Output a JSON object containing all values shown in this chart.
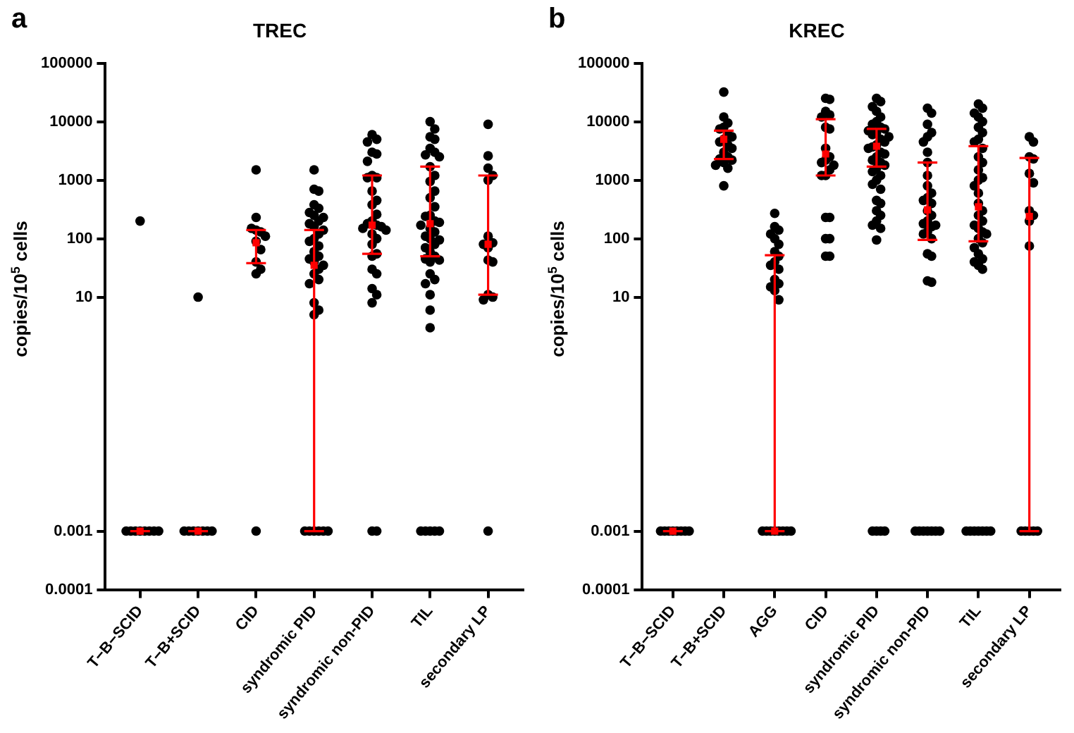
{
  "chart_data": [
    {
      "type": "scatter",
      "title": "TREC",
      "ylabel": "copies/10$^{5}$ cells",
      "annotations": [
        "a"
      ],
      "log": true,
      "grid": false,
      "legend": false,
      "marker": "circle",
      "categories": [
        "T−B−SCID",
        "T−B+SCID",
        "CID",
        "syndromic PID",
        "syndromic non-PID",
        "TIL",
        "secondary LP"
      ],
      "ylim": [
        0.0001,
        100000
      ],
      "yticks": [
        0.0001,
        0.001,
        10,
        100,
        1000,
        10000,
        100000
      ],
      "series": [
        {
          "type": "scatter",
          "color": "#000000",
          "x": [
            "T−B−SCID",
            "T−B−SCID",
            "T−B−SCID",
            "T−B−SCID",
            "T−B−SCID",
            "T−B−SCID",
            "T−B−SCID",
            "T−B−SCID",
            "T−B−SCID",
            "T−B+SCID",
            "T−B+SCID",
            "T−B+SCID",
            "T−B+SCID",
            "T−B+SCID",
            "T−B+SCID",
            "T−B+SCID",
            "T−B+SCID",
            "CID",
            "CID",
            "CID",
            "CID",
            "CID",
            "CID",
            "CID",
            "CID",
            "CID",
            "CID",
            "CID",
            "CID",
            "syndromic PID",
            "syndromic PID",
            "syndromic PID",
            "syndromic PID",
            "syndromic PID",
            "syndromic PID",
            "syndromic PID",
            "syndromic PID",
            "syndromic PID",
            "syndromic PID",
            "syndromic PID",
            "syndromic PID",
            "syndromic PID",
            "syndromic PID",
            "syndromic PID",
            "syndromic PID",
            "syndromic PID",
            "syndromic PID",
            "syndromic PID",
            "syndromic PID",
            "syndromic PID",
            "syndromic PID",
            "syndromic PID",
            "syndromic PID",
            "syndromic PID",
            "syndromic PID",
            "syndromic PID",
            "syndromic PID",
            "syndromic PID",
            "syndromic PID",
            "syndromic PID",
            "syndromic PID",
            "syndromic PID",
            "syndromic PID",
            "syndromic non-PID",
            "syndromic non-PID",
            "syndromic non-PID",
            "syndromic non-PID",
            "syndromic non-PID",
            "syndromic non-PID",
            "syndromic non-PID",
            "syndromic non-PID",
            "syndromic non-PID",
            "syndromic non-PID",
            "syndromic non-PID",
            "syndromic non-PID",
            "syndromic non-PID",
            "syndromic non-PID",
            "syndromic non-PID",
            "syndromic non-PID",
            "syndromic non-PID",
            "syndromic non-PID",
            "syndromic non-PID",
            "syndromic non-PID",
            "syndromic non-PID",
            "syndromic non-PID",
            "syndromic non-PID",
            "syndromic non-PID",
            "syndromic non-PID",
            "syndromic non-PID",
            "syndromic non-PID",
            "syndromic non-PID",
            "syndromic non-PID",
            "syndromic non-PID",
            "syndromic non-PID",
            "TIL",
            "TIL",
            "TIL",
            "TIL",
            "TIL",
            "TIL",
            "TIL",
            "TIL",
            "TIL",
            "TIL",
            "TIL",
            "TIL",
            "TIL",
            "TIL",
            "TIL",
            "TIL",
            "TIL",
            "TIL",
            "TIL",
            "TIL",
            "TIL",
            "TIL",
            "TIL",
            "TIL",
            "TIL",
            "TIL",
            "TIL",
            "TIL",
            "TIL",
            "TIL",
            "TIL",
            "TIL",
            "TIL",
            "TIL",
            "TIL",
            "TIL",
            "TIL",
            "TIL",
            "TIL",
            "TIL",
            "TIL",
            "TIL",
            "secondary LP",
            "secondary LP",
            "secondary LP",
            "secondary LP",
            "secondary LP",
            "secondary LP",
            "secondary LP",
            "secondary LP",
            "secondary LP",
            "secondary LP",
            "secondary LP",
            "secondary LP",
            "secondary LP",
            "secondary LP",
            "secondary LP"
          ],
          "values": [
            200,
            0.001,
            0.001,
            0.001,
            0.001,
            0.001,
            0.001,
            0.001,
            0.001,
            10,
            0.001,
            0.001,
            0.001,
            0.001,
            0.001,
            0.001,
            0.001,
            1500,
            230,
            140,
            130,
            150,
            110,
            90,
            65,
            40,
            30,
            25,
            0.001,
            1500,
            700,
            650,
            380,
            330,
            280,
            250,
            230,
            200,
            180,
            160,
            140,
            120,
            100,
            90,
            75,
            60,
            50,
            45,
            40,
            35,
            30,
            25,
            20,
            17,
            8,
            6,
            5,
            0.001,
            0.001,
            0.001,
            0.001,
            0.001,
            0.001,
            6000,
            5000,
            4500,
            3000,
            2800,
            2100,
            1200,
            1100,
            1100,
            650,
            450,
            380,
            260,
            200,
            180,
            170,
            160,
            150,
            140,
            120,
            100,
            80,
            55,
            50,
            30,
            25,
            14,
            11,
            8,
            0.001,
            0.001,
            10000,
            7500,
            5500,
            5000,
            3500,
            3000,
            2700,
            2500,
            1700,
            1200,
            950,
            650,
            500,
            350,
            250,
            240,
            200,
            190,
            170,
            150,
            130,
            110,
            100,
            95,
            80,
            70,
            60,
            50,
            45,
            43,
            40,
            25,
            20,
            17,
            11,
            6,
            3,
            0.001,
            0.001,
            0.001,
            0.001,
            0.001,
            9000,
            2600,
            1600,
            1200,
            1000,
            110,
            85,
            80,
            70,
            43,
            40,
            11,
            10,
            9,
            0.001
          ]
        },
        {
          "type": "scatter",
          "color": "#ff0000",
          "marker": "square",
          "x": [
            "T−B−SCID",
            "T−B+SCID",
            "CID",
            "syndromic PID",
            "syndromic non-PID",
            "TIL",
            "secondary LP"
          ],
          "values": [
            0.001,
            0.001,
            85,
            35,
            170,
            180,
            80
          ],
          "errors": [
            [
              0.001,
              0.001
            ],
            [
              0.001,
              0.001
            ],
            [
              38,
              140
            ],
            [
              0.001,
              140
            ],
            [
              55,
              1200
            ],
            [
              50,
              1700
            ],
            [
              11,
              1200
            ]
          ]
        }
      ]
    },
    {
      "type": "scatter",
      "title": "KREC",
      "ylabel": "copies/10$^{5}$ cells",
      "annotations": [
        "b"
      ],
      "log": true,
      "grid": false,
      "legend": false,
      "marker": "circle",
      "categories": [
        "T−B−SCID",
        "T−B+SCID",
        "AGG",
        "CID",
        "syndromic PID",
        "syndromic non-PID",
        "TIL",
        "secondary LP"
      ],
      "ylim": [
        0.0001,
        100000
      ],
      "yticks": [
        0.0001,
        0.001,
        10,
        100,
        1000,
        10000,
        100000
      ],
      "series": [
        {
          "type": "scatter",
          "color": "#000000",
          "x": [
            "T−B−SCID",
            "T−B−SCID",
            "T−B−SCID",
            "T−B−SCID",
            "T−B−SCID",
            "T−B−SCID",
            "T−B−SCID",
            "T−B−SCID",
            "T−B+SCID",
            "T−B+SCID",
            "T−B+SCID",
            "T−B+SCID",
            "T−B+SCID",
            "T−B+SCID",
            "T−B+SCID",
            "T−B+SCID",
            "T−B+SCID",
            "T−B+SCID",
            "T−B+SCID",
            "T−B+SCID",
            "T−B+SCID",
            "T−B+SCID",
            "T−B+SCID",
            "T−B+SCID",
            "T−B+SCID",
            "T−B+SCID",
            "T−B+SCID",
            "AGG",
            "AGG",
            "AGG",
            "AGG",
            "AGG",
            "AGG",
            "AGG",
            "AGG",
            "AGG",
            "AGG",
            "AGG",
            "AGG",
            "AGG",
            "AGG",
            "AGG",
            "AGG",
            "AGG",
            "AGG",
            "AGG",
            "AGG",
            "AGG",
            "AGG",
            "AGG",
            "AGG",
            "CID",
            "CID",
            "CID",
            "CID",
            "CID",
            "CID",
            "CID",
            "CID",
            "CID",
            "CID",
            "CID",
            "CID",
            "CID",
            "CID",
            "CID",
            "CID",
            "CID",
            "CID",
            "CID",
            "CID",
            "CID",
            "syndromic PID",
            "syndromic PID",
            "syndromic PID",
            "syndromic PID",
            "syndromic PID",
            "syndromic PID",
            "syndromic PID",
            "syndromic PID",
            "syndromic PID",
            "syndromic PID",
            "syndromic PID",
            "syndromic PID",
            "syndromic PID",
            "syndromic PID",
            "syndromic PID",
            "syndromic PID",
            "syndromic PID",
            "syndromic PID",
            "syndromic PID",
            "syndromic PID",
            "syndromic PID",
            "syndromic PID",
            "syndromic PID",
            "syndromic PID",
            "syndromic PID",
            "syndromic PID",
            "syndromic PID",
            "syndromic PID",
            "syndromic PID",
            "syndromic PID",
            "syndromic PID",
            "syndromic PID",
            "syndromic PID",
            "syndromic PID",
            "syndromic PID",
            "syndromic PID",
            "syndromic PID",
            "syndromic PID",
            "syndromic PID",
            "syndromic PID",
            "syndromic PID",
            "syndromic PID",
            "syndromic non-PID",
            "syndromic non-PID",
            "syndromic non-PID",
            "syndromic non-PID",
            "syndromic non-PID",
            "syndromic non-PID",
            "syndromic non-PID",
            "syndromic non-PID",
            "syndromic non-PID",
            "syndromic non-PID",
            "syndromic non-PID",
            "syndromic non-PID",
            "syndromic non-PID",
            "syndromic non-PID",
            "syndromic non-PID",
            "syndromic non-PID",
            "syndromic non-PID",
            "syndromic non-PID",
            "syndromic non-PID",
            "syndromic non-PID",
            "syndromic non-PID",
            "syndromic non-PID",
            "syndromic non-PID",
            "syndromic non-PID",
            "syndromic non-PID",
            "syndromic non-PID",
            "syndromic non-PID",
            "syndromic non-PID",
            "syndromic non-PID",
            "syndromic non-PID",
            "syndromic non-PID",
            "syndromic non-PID",
            "syndromic non-PID",
            "syndromic non-PID",
            "TIL",
            "TIL",
            "TIL",
            "TIL",
            "TIL",
            "TIL",
            "TIL",
            "TIL",
            "TIL",
            "TIL",
            "TIL",
            "TIL",
            "TIL",
            "TIL",
            "TIL",
            "TIL",
            "TIL",
            "TIL",
            "TIL",
            "TIL",
            "TIL",
            "TIL",
            "TIL",
            "TIL",
            "TIL",
            "TIL",
            "TIL",
            "TIL",
            "TIL",
            "TIL",
            "TIL",
            "TIL",
            "TIL",
            "TIL",
            "TIL",
            "TIL",
            "TIL",
            "TIL",
            "TIL",
            "TIL",
            "secondary LP",
            "secondary LP",
            "secondary LP",
            "secondary LP",
            "secondary LP",
            "secondary LP",
            "secondary LP",
            "secondary LP",
            "secondary LP",
            "secondary LP",
            "secondary LP",
            "secondary LP",
            "secondary LP",
            "secondary LP",
            "secondary LP"
          ],
          "values": [
            0.001,
            0.001,
            0.001,
            0.001,
            0.001,
            0.001,
            0.001,
            0.001,
            32000,
            12000,
            9500,
            8000,
            7500,
            6000,
            5500,
            5000,
            4500,
            4000,
            3500,
            3000,
            2500,
            2300,
            2200,
            2000,
            1800,
            1600,
            800,
            270,
            160,
            140,
            120,
            100,
            80,
            60,
            50,
            40,
            35,
            30,
            20,
            17,
            15,
            13,
            9,
            0.001,
            0.001,
            0.001,
            0.001,
            0.001,
            0.001,
            0.001,
            0.001,
            25000,
            24000,
            15000,
            13000,
            12000,
            8000,
            7500,
            3500,
            2500,
            2200,
            2000,
            1800,
            1500,
            1200,
            1200,
            230,
            230,
            100,
            100,
            50,
            50,
            25000,
            22000,
            18000,
            15000,
            12000,
            10000,
            9000,
            8000,
            7500,
            7000,
            6500,
            6000,
            5500,
            5000,
            4500,
            4000,
            3700,
            3500,
            3000,
            2800,
            2500,
            2200,
            2000,
            1800,
            1600,
            1400,
            1200,
            1000,
            850,
            700,
            450,
            400,
            300,
            250,
            200,
            170,
            150,
            95,
            0.001,
            0.001,
            0.001,
            0.001,
            17000,
            14000,
            9000,
            6500,
            5500,
            4500,
            3000,
            2000,
            1200,
            800,
            600,
            500,
            450,
            400,
            300,
            250,
            200,
            180,
            170,
            160,
            130,
            120,
            100,
            55,
            50,
            19,
            18,
            0.001,
            0.001,
            0.001,
            0.001,
            0.001,
            0.001,
            0.001,
            20000,
            17000,
            14000,
            12000,
            10000,
            8000,
            6500,
            5000,
            4500,
            3500,
            2500,
            2000,
            1500,
            1100,
            1000,
            800,
            600,
            400,
            300,
            250,
            200,
            170,
            150,
            130,
            120,
            100,
            85,
            70,
            55,
            45,
            40,
            35,
            30,
            0.001,
            0.001,
            0.001,
            0.001,
            0.001,
            0.001,
            0.001,
            5500,
            4500,
            2500,
            2300,
            1300,
            900,
            300,
            250,
            200,
            75,
            0.001,
            0.001,
            0.001,
            0.001,
            0.001
          ]
        },
        {
          "type": "scatter",
          "color": "#ff0000",
          "marker": "square",
          "x": [
            "T−B−SCID",
            "T−B+SCID",
            "AGG",
            "CID",
            "syndromic PID",
            "syndromic non-PID",
            "TIL",
            "secondary LP"
          ],
          "values": [
            0.001,
            5000,
            0.001,
            2800,
            3800,
            310,
            350,
            240
          ],
          "errors": [
            [
              0.001,
              0.001
            ],
            [
              2300,
              7000
            ],
            [
              0.001,
              52
            ],
            [
              1200,
              11000
            ],
            [
              1700,
              7500
            ],
            [
              95,
              2000
            ],
            [
              90,
              3800
            ],
            [
              0.001,
              2400
            ]
          ]
        }
      ]
    }
  ]
}
